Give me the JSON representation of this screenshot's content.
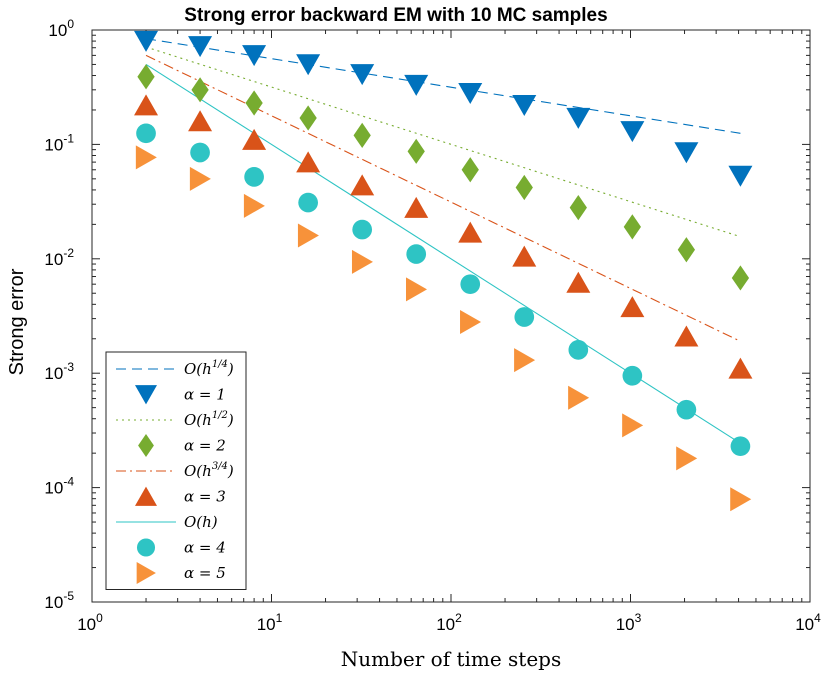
{
  "chart_data": {
    "type": "scatter",
    "title": "Strong error backward EM with 10 MC samples",
    "xlabel": "Number of time steps",
    "ylabel": "Strong error",
    "xscale": "log",
    "yscale": "log",
    "xlim": [
      1,
      10000
    ],
    "ylim": [
      1e-05,
      1
    ],
    "x_ticks": [
      {
        "base": "10",
        "exp": "0"
      },
      {
        "base": "10",
        "exp": "1"
      },
      {
        "base": "10",
        "exp": "2"
      },
      {
        "base": "10",
        "exp": "3"
      },
      {
        "base": "10",
        "exp": "4"
      }
    ],
    "y_ticks": [
      {
        "base": "10",
        "exp": "0"
      },
      {
        "base": "10",
        "exp": "-1"
      },
      {
        "base": "10",
        "exp": "-2"
      },
      {
        "base": "10",
        "exp": "-3"
      },
      {
        "base": "10",
        "exp": "-4"
      },
      {
        "base": "10",
        "exp": "-5"
      }
    ],
    "x": [
      2,
      4,
      8,
      16,
      32,
      64,
      128,
      256,
      512,
      1024,
      2048,
      4096
    ],
    "series": [
      {
        "name": "α = 1",
        "label": "α = 1",
        "marker": "triangle-down",
        "color": "#0072BD",
        "values": [
          0.8,
          0.72,
          0.6,
          0.5,
          0.41,
          0.33,
          0.28,
          0.22,
          0.17,
          0.13,
          0.085,
          0.053
        ]
      },
      {
        "name": "α = 2",
        "label": "α = 2",
        "marker": "diamond",
        "color": "#77AC30",
        "values": [
          0.39,
          0.3,
          0.23,
          0.17,
          0.12,
          0.087,
          0.06,
          0.042,
          0.028,
          0.019,
          0.012,
          0.0068
        ]
      },
      {
        "name": "α = 3",
        "label": "α = 3",
        "marker": "triangle-up",
        "color": "#D95319",
        "values": [
          0.22,
          0.16,
          0.11,
          0.07,
          0.044,
          0.028,
          0.017,
          0.0105,
          0.0062,
          0.0038,
          0.0021,
          0.0011
        ]
      },
      {
        "name": "α = 4",
        "label": "α = 4",
        "marker": "circle",
        "color": "#2EC4C4",
        "values": [
          0.125,
          0.085,
          0.052,
          0.031,
          0.018,
          0.011,
          0.006,
          0.0031,
          0.0016,
          0.00095,
          0.00048,
          0.00023
        ]
      },
      {
        "name": "α = 5",
        "label": "α = 5",
        "marker": "triangle-right",
        "color": "#F7923A",
        "values": [
          0.077,
          0.05,
          0.029,
          0.016,
          0.0094,
          0.0054,
          0.0028,
          0.0013,
          0.00061,
          0.00035,
          0.00018,
          7.9e-05
        ]
      }
    ],
    "reference_lines": [
      {
        "name": "O(h^{1/4})",
        "label_base": "O(h",
        "label_exp": "1/4",
        "label_close": ")",
        "style": "dashed",
        "color": "#0072BD",
        "x": [
          2,
          4096
        ],
        "values": [
          0.84,
          0.125
        ]
      },
      {
        "name": "O(h^{1/2})",
        "label_base": "O(h",
        "label_exp": "1/2",
        "label_close": ")",
        "style": "dotted",
        "color": "#77AC30",
        "x": [
          2,
          4096
        ],
        "values": [
          0.71,
          0.0156
        ]
      },
      {
        "name": "O(h^{3/4})",
        "label_base": "O(h",
        "label_exp": "3/4",
        "label_close": ")",
        "style": "dashdot",
        "color": "#D95319",
        "x": [
          2,
          4096
        ],
        "values": [
          0.6,
          0.0019
        ]
      },
      {
        "name": "O(h)",
        "label_base": "O(h)",
        "label_exp": "",
        "label_close": "",
        "style": "solid",
        "color": "#2EC4C4",
        "x": [
          2,
          4096
        ],
        "values": [
          0.5,
          0.000244
        ]
      }
    ],
    "legend": {
      "position": "bottom-left",
      "order": [
        "ref:0",
        "ser:0",
        "ref:1",
        "ser:1",
        "ref:2",
        "ser:2",
        "ref:3",
        "ser:3",
        "ser:4"
      ]
    }
  }
}
